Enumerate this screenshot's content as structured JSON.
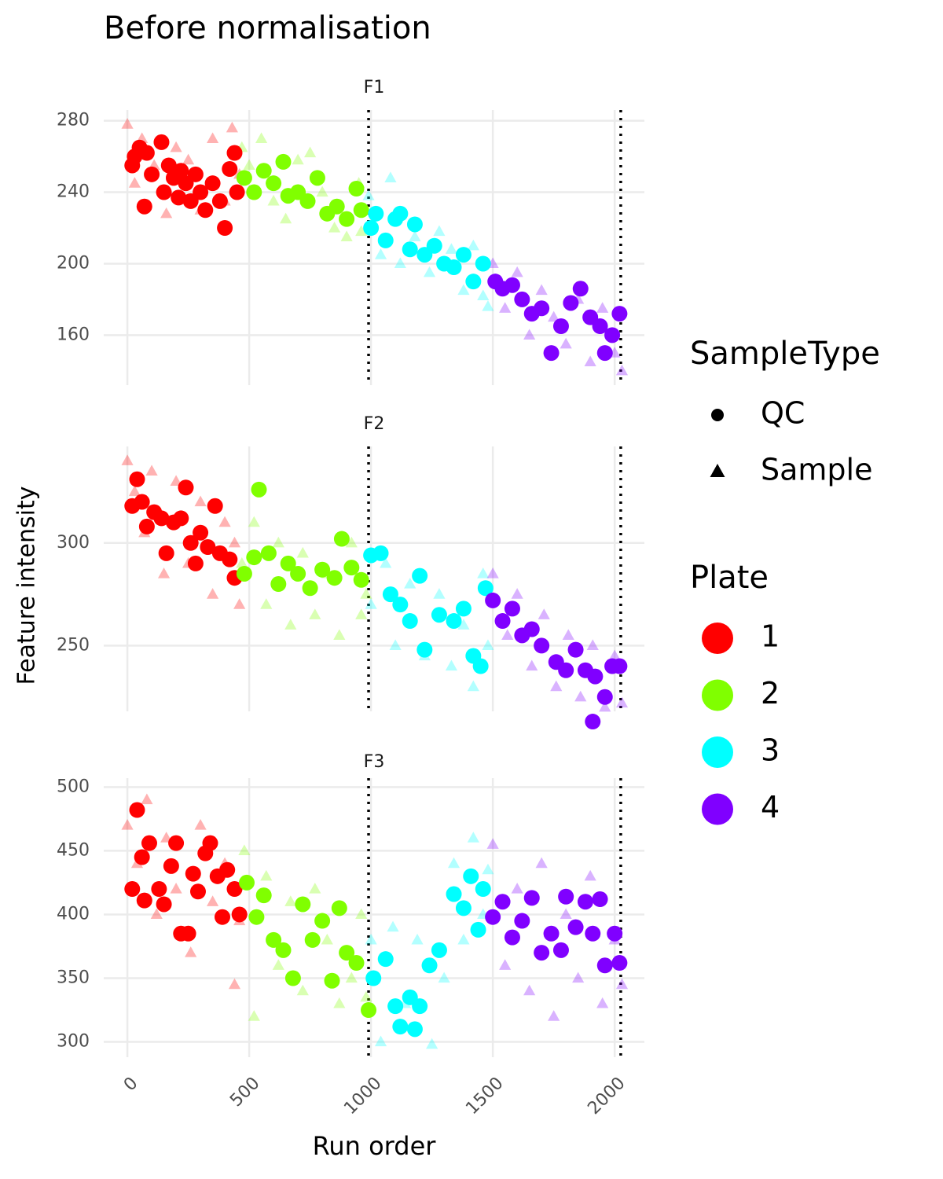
{
  "chart_data": {
    "type": "scatter",
    "title": "Before normalisation",
    "xlabel": "Run order",
    "ylabel": "Feature intensity",
    "xlim": [
      -97,
      2122
    ],
    "xticks": [
      0,
      500,
      1000,
      1500,
      2000
    ],
    "vlines": [
      990,
      2025
    ],
    "grid": true,
    "legend": {
      "shape_title": "SampleType",
      "shapes": [
        {
          "name": "QC",
          "shape": "circle"
        },
        {
          "name": "Sample",
          "shape": "triangle"
        }
      ],
      "color_title": "Plate",
      "plates": [
        {
          "name": "1",
          "color": "#ff0000"
        },
        {
          "name": "2",
          "color": "#80ff00"
        },
        {
          "name": "3",
          "color": "#00ffff"
        },
        {
          "name": "4",
          "color": "#8000ff"
        }
      ]
    },
    "facets": [
      {
        "name": "F1",
        "ylim": [
          132,
          286
        ],
        "yticks": [
          160,
          200,
          240,
          280
        ],
        "series": [
          {
            "plate": 0,
            "type": 1,
            "x": [
              0,
              30,
              60,
              110,
              160,
              200,
              250,
              300,
              350,
              400,
              430,
              460
            ],
            "y": [
              278,
              245,
              270,
              255,
              228,
              265,
              258,
              230,
              270,
              235,
              276,
              250
            ]
          },
          {
            "plate": 1,
            "type": 1,
            "x": [
              470,
              500,
              550,
              600,
              650,
              700,
              750,
              800,
              850,
              900,
              950,
              960
            ],
            "y": [
              265,
              255,
              270,
              235,
              225,
              258,
              262,
              240,
              220,
              215,
              245,
              218
            ]
          },
          {
            "plate": 2,
            "type": 1,
            "x": [
              990,
              1040,
              1080,
              1120,
              1180,
              1240,
              1280,
              1330,
              1380,
              1420,
              1460,
              1480
            ],
            "y": [
              238,
              205,
              248,
              200,
              215,
              195,
              218,
              208,
              185,
              210,
              182,
              176
            ]
          },
          {
            "plate": 3,
            "type": 1,
            "x": [
              1500,
              1550,
              1600,
              1650,
              1700,
              1750,
              1800,
              1850,
              1900,
              1950,
              2000,
              2030
            ],
            "y": [
              200,
              175,
              195,
              160,
              185,
              170,
              155,
              180,
              145,
              175,
              150,
              140
            ]
          },
          {
            "plate": 0,
            "type": 0,
            "x": [
              20,
              30,
              50,
              70,
              80,
              100,
              140,
              150,
              170,
              190,
              210,
              220,
              240,
              260,
              280,
              300,
              320,
              350,
              380,
              400,
              420,
              440,
              450
            ],
            "y": [
              255,
              260,
              265,
              232,
              262,
              250,
              268,
              240,
              255,
              248,
              237,
              252,
              245,
              235,
              250,
              240,
              230,
              245,
              235,
              220,
              253,
              262,
              240
            ]
          },
          {
            "plate": 1,
            "type": 0,
            "x": [
              480,
              520,
              560,
              600,
              640,
              660,
              700,
              740,
              780,
              820,
              860,
              900,
              940,
              960
            ],
            "y": [
              248,
              240,
              252,
              245,
              257,
              238,
              240,
              235,
              248,
              228,
              232,
              225,
              242,
              230
            ]
          },
          {
            "plate": 2,
            "type": 0,
            "x": [
              1000,
              1020,
              1060,
              1100,
              1120,
              1160,
              1180,
              1220,
              1260,
              1300,
              1340,
              1380,
              1420,
              1460
            ],
            "y": [
              220,
              228,
              213,
              225,
              228,
              208,
              222,
              205,
              210,
              200,
              198,
              205,
              190,
              200
            ]
          },
          {
            "plate": 3,
            "type": 0,
            "x": [
              1510,
              1540,
              1580,
              1620,
              1660,
              1700,
              1740,
              1780,
              1820,
              1860,
              1900,
              1940,
              1960,
              1990,
              2020
            ],
            "y": [
              190,
              186,
              188,
              180,
              172,
              175,
              150,
              165,
              178,
              186,
              170,
              165,
              150,
              160,
              172
            ]
          }
        ]
      },
      {
        "name": "F2",
        "ylim": [
          218,
          347
        ],
        "yticks": [
          250,
          300
        ],
        "series": [
          {
            "plate": 0,
            "type": 1,
            "x": [
              0,
              30,
              70,
              100,
              150,
              200,
              250,
              300,
              350,
              400,
              440,
              460
            ],
            "y": [
              340,
              325,
              305,
              335,
              285,
              330,
              290,
              320,
              275,
              310,
              300,
              270
            ]
          },
          {
            "plate": 1,
            "type": 1,
            "x": [
              470,
              520,
              570,
              620,
              670,
              720,
              770,
              820,
              870,
              920,
              960,
              980
            ],
            "y": [
              290,
              310,
              270,
              300,
              260,
              295,
              265,
              285,
              255,
              300,
              265,
              275
            ]
          },
          {
            "plate": 2,
            "type": 1,
            "x": [
              1000,
              1060,
              1100,
              1160,
              1220,
              1280,
              1330,
              1380,
              1420,
              1460,
              1480
            ],
            "y": [
              270,
              290,
              250,
              280,
              245,
              275,
              240,
              260,
              230,
              285,
              250
            ]
          },
          {
            "plate": 3,
            "type": 1,
            "x": [
              1500,
              1560,
              1600,
              1660,
              1710,
              1760,
              1810,
              1860,
              1910,
              1960,
              2000,
              2030
            ],
            "y": [
              285,
              255,
              275,
              240,
              265,
              230,
              255,
              225,
              250,
              220,
              245,
              222
            ]
          },
          {
            "plate": 0,
            "type": 0,
            "x": [
              20,
              40,
              60,
              80,
              110,
              140,
              160,
              190,
              220,
              240,
              260,
              280,
              300,
              330,
              360,
              380,
              420,
              440
            ],
            "y": [
              318,
              331,
              320,
              308,
              315,
              312,
              295,
              310,
              312,
              327,
              300,
              290,
              305,
              298,
              318,
              295,
              292,
              283
            ]
          },
          {
            "plate": 1,
            "type": 0,
            "x": [
              480,
              520,
              540,
              580,
              620,
              660,
              700,
              750,
              800,
              850,
              880,
              920,
              960
            ],
            "y": [
              285,
              293,
              326,
              295,
              280,
              290,
              285,
              278,
              287,
              283,
              302,
              288,
              282
            ]
          },
          {
            "plate": 2,
            "type": 0,
            "x": [
              1000,
              1040,
              1080,
              1120,
              1200,
              1160,
              1220,
              1280,
              1340,
              1380,
              1420,
              1450,
              1470
            ],
            "y": [
              294,
              295,
              275,
              270,
              284,
              262,
              248,
              265,
              262,
              268,
              245,
              240,
              278
            ]
          },
          {
            "plate": 3,
            "type": 0,
            "x": [
              1500,
              1540,
              1580,
              1620,
              1660,
              1700,
              1760,
              1800,
              1840,
              1880,
              1920,
              1960,
              1990,
              2020,
              1910
            ],
            "y": [
              272,
              262,
              268,
              255,
              258,
              250,
              242,
              238,
              248,
              238,
              235,
              225,
              240,
              240,
              213
            ]
          }
        ]
      },
      {
        "name": "F3",
        "ylim": [
          288,
          507
        ],
        "yticks": [
          300,
          350,
          400,
          450,
          500
        ],
        "series": [
          {
            "plate": 0,
            "type": 1,
            "x": [
              0,
              40,
              80,
              120,
              160,
              200,
              260,
              300,
              350,
              400,
              440,
              460
            ],
            "y": [
              470,
              440,
              490,
              400,
              460,
              420,
              370,
              470,
              410,
              440,
              345,
              395
            ]
          },
          {
            "plate": 1,
            "type": 1,
            "x": [
              480,
              520,
              570,
              620,
              670,
              720,
              770,
              820,
              870,
              920,
              960,
              980
            ],
            "y": [
              450,
              320,
              430,
              360,
              410,
              340,
              420,
              380,
              330,
              350,
              400,
              335
            ]
          },
          {
            "plate": 2,
            "type": 1,
            "x": [
              1000,
              1040,
              1090,
              1140,
              1190,
              1250,
              1300,
              1340,
              1380,
              1420,
              1460,
              1480
            ],
            "y": [
              380,
              300,
              390,
              330,
              380,
              298,
              350,
              440,
              380,
              460,
              400,
              435
            ]
          },
          {
            "plate": 3,
            "type": 1,
            "x": [
              1500,
              1550,
              1600,
              1650,
              1700,
              1750,
              1800,
              1850,
              1900,
              1950,
              2000,
              2030
            ],
            "y": [
              455,
              360,
              420,
              340,
              440,
              320,
              400,
              350,
              430,
              330,
              380,
              345
            ]
          },
          {
            "plate": 0,
            "type": 0,
            "x": [
              20,
              40,
              60,
              70,
              90,
              130,
              150,
              180,
              200,
              220,
              250,
              270,
              290,
              320,
              340,
              370,
              390,
              410,
              440,
              460
            ],
            "y": [
              420,
              482,
              445,
              411,
              456,
              420,
              408,
              438,
              456,
              385,
              385,
              432,
              418,
              448,
              456,
              430,
              398,
              435,
              420,
              400
            ]
          },
          {
            "plate": 1,
            "type": 0,
            "x": [
              490,
              530,
              560,
              600,
              640,
              680,
              720,
              760,
              800,
              840,
              870,
              900,
              940,
              990
            ],
            "y": [
              425,
              398,
              415,
              380,
              372,
              350,
              408,
              380,
              395,
              348,
              405,
              370,
              362,
              325
            ]
          },
          {
            "plate": 2,
            "type": 0,
            "x": [
              1010,
              1060,
              1100,
              1120,
              1160,
              1180,
              1200,
              1240,
              1280,
              1340,
              1380,
              1410,
              1440,
              1460
            ],
            "y": [
              350,
              365,
              328,
              312,
              335,
              310,
              328,
              360,
              372,
              416,
              405,
              430,
              388,
              420
            ]
          },
          {
            "plate": 3,
            "type": 0,
            "x": [
              1500,
              1540,
              1580,
              1620,
              1660,
              1700,
              1740,
              1780,
              1800,
              1840,
              1880,
              1910,
              1940,
              1960,
              2000,
              2020
            ],
            "y": [
              398,
              410,
              382,
              395,
              413,
              370,
              385,
              372,
              414,
              390,
              410,
              385,
              412,
              360,
              385,
              362
            ]
          }
        ]
      }
    ]
  }
}
